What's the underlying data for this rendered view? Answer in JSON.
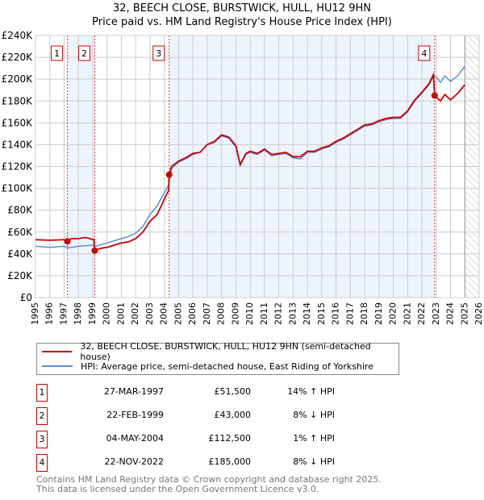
{
  "chart_data": {
    "type": "line",
    "title": "32, BEECH CLOSE, BURSTWICK, HULL, HU12 9HN",
    "subtitle": "Price paid vs. HM Land Registry's House Price Index (HPI)",
    "xlim": [
      1995,
      2026
    ],
    "ylim": [
      0,
      240000
    ],
    "x_ticks": [
      "1995",
      "1996",
      "1997",
      "1998",
      "1999",
      "2000",
      "2001",
      "2002",
      "2003",
      "2004",
      "2005",
      "2006",
      "2007",
      "2008",
      "2009",
      "2010",
      "2011",
      "2012",
      "2013",
      "2014",
      "2015",
      "2016",
      "2017",
      "2018",
      "2019",
      "2020",
      "2021",
      "2022",
      "2023",
      "2024",
      "2025",
      "2026"
    ],
    "y_ticks": [
      {
        "v": 0,
        "label": "£0"
      },
      {
        "v": 20000,
        "label": "£20K"
      },
      {
        "v": 40000,
        "label": "£40K"
      },
      {
        "v": 60000,
        "label": "£60K"
      },
      {
        "v": 80000,
        "label": "£80K"
      },
      {
        "v": 100000,
        "label": "£100K"
      },
      {
        "v": 120000,
        "label": "£120K"
      },
      {
        "v": 140000,
        "label": "£140K"
      },
      {
        "v": 160000,
        "label": "£160K"
      },
      {
        "v": 180000,
        "label": "£180K"
      },
      {
        "v": 200000,
        "label": "£200K"
      },
      {
        "v": 220000,
        "label": "£220K"
      },
      {
        "v": 240000,
        "label": "£240K"
      }
    ],
    "grid": true,
    "forecast_from": 2025.0,
    "series": [
      {
        "name": "32, BEECH CLOSE, BURSTWICK, HULL, HU12 9HN (semi-detached house)",
        "color": "#cc0000",
        "x": [
          1995,
          1996,
          1997,
          1997.23,
          1997.5,
          1998,
          1998.5,
          1999.08,
          1999.14,
          1999.5,
          2000,
          2001,
          2001.5,
          2002,
          2002.5,
          2003,
          2003.5,
          2004,
          2004.3,
          2004.34,
          2004.5,
          2005,
          2005.5,
          2006,
          2006.5,
          2007,
          2007.5,
          2008,
          2008.5,
          2009,
          2009.3,
          2009.7,
          2010,
          2010.5,
          2011,
          2011.5,
          2012,
          2012.5,
          2013,
          2013.5,
          2014,
          2014.5,
          2015,
          2015.5,
          2016,
          2016.5,
          2017,
          2017.5,
          2018,
          2018.5,
          2019,
          2019.5,
          2020,
          2020.5,
          2021,
          2021.5,
          2022,
          2022.5,
          2022.8,
          2022.89,
          2023.3,
          2023.6,
          2024,
          2024.5,
          2025
        ],
        "y": [
          53000,
          52500,
          53000,
          51500,
          54000,
          54000,
          55000,
          53000,
          43000,
          45000,
          46000,
          50000,
          51000,
          54000,
          60000,
          70000,
          76000,
          90000,
          98000,
          112500,
          120000,
          125000,
          128000,
          132000,
          133000,
          140000,
          143000,
          149000,
          147000,
          139000,
          122000,
          132000,
          134000,
          132000,
          136000,
          131000,
          132000,
          133000,
          129000,
          129000,
          134000,
          134000,
          137000,
          139000,
          143000,
          146000,
          150000,
          154000,
          158000,
          159000,
          162000,
          164000,
          165000,
          165000,
          171000,
          181000,
          188000,
          196000,
          204000,
          185000,
          180000,
          186000,
          181000,
          187000,
          195000
        ]
      },
      {
        "name": "HPI: Average price, semi-detached house, East Riding of Yorkshire",
        "color": "#5b8fd4",
        "x": [
          1995,
          1996,
          1997,
          1997.25,
          1998,
          1999,
          1999.2,
          2000,
          2001,
          2001.5,
          2002,
          2002.5,
          2003,
          2003.5,
          2004,
          2004.3,
          2004.5,
          2005,
          2005.5,
          2006,
          2006.5,
          2007,
          2007.5,
          2008,
          2008.5,
          2009,
          2009.3,
          2009.7,
          2010,
          2010.5,
          2011,
          2011.5,
          2012,
          2012.5,
          2013,
          2013.5,
          2014,
          2014.5,
          2015,
          2015.5,
          2016,
          2016.5,
          2017,
          2017.5,
          2018,
          2018.5,
          2019,
          2019.5,
          2020,
          2020.5,
          2021,
          2021.5,
          2022,
          2022.5,
          2022.8,
          2023,
          2023.3,
          2023.6,
          2024,
          2024.5,
          2025
        ],
        "y": [
          47000,
          46000,
          47000,
          45500,
          47000,
          48000,
          47000,
          50000,
          54000,
          56000,
          59000,
          65000,
          76000,
          84000,
          96000,
          103000,
          118000,
          124000,
          127000,
          131000,
          133000,
          140000,
          142000,
          148000,
          146000,
          138000,
          121000,
          131000,
          133000,
          131000,
          135000,
          130000,
          131000,
          132000,
          128000,
          127000,
          133000,
          133000,
          136000,
          138000,
          142000,
          145000,
          149000,
          153000,
          157000,
          158000,
          161000,
          163000,
          164000,
          164000,
          170000,
          180000,
          187000,
          195000,
          203000,
          202000,
          197000,
          203000,
          198000,
          203000,
          212000
        ]
      }
    ],
    "sales": [
      {
        "n": "1",
        "x": 1997.23,
        "price": 51500,
        "date": "27-MAR-1997",
        "price_label": "£51,500",
        "hpi": "14% ↑ HPI"
      },
      {
        "n": "2",
        "x": 1999.14,
        "price": 43000,
        "date": "22-FEB-1999",
        "price_label": "£43,000",
        "hpi": "8% ↓ HPI"
      },
      {
        "n": "3",
        "x": 2004.34,
        "price": 112500,
        "date": "04-MAY-2004",
        "price_label": "£112,500",
        "hpi": "1% ↑ HPI"
      },
      {
        "n": "4",
        "x": 2022.89,
        "price": 185000,
        "date": "22-NOV-2022",
        "price_label": "£185,000",
        "hpi": "8% ↓ HPI"
      }
    ],
    "legend": {
      "placement": "below",
      "red": "32, BEECH CLOSE, BURSTWICK, HULL, HU12 9HN (semi-detached house)",
      "blue": "HPI: Average price, semi-detached house, East Riding of Yorkshire"
    }
  },
  "footer": {
    "line1": "Contains HM Land Registry data © Crown copyright and database right 2025.",
    "line2": "This data is licensed under the Open Government Licence v3.0."
  }
}
